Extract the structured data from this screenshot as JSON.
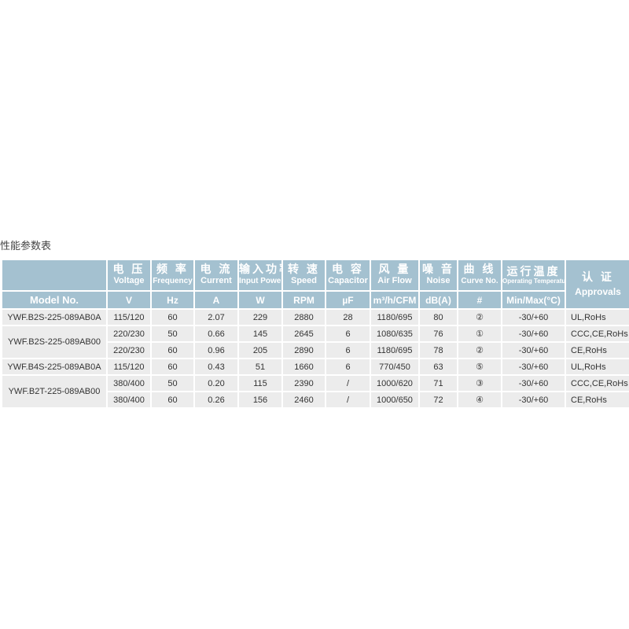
{
  "title": "性能参数表",
  "header": {
    "model": "Model No.",
    "cols": [
      {
        "zh": "电 压",
        "en": "Voltage",
        "unit": "V"
      },
      {
        "zh": "频 率",
        "en": "Frequency",
        "unit": "Hz"
      },
      {
        "zh": "电 流",
        "en": "Current",
        "unit": "A"
      },
      {
        "zh": "输入功率",
        "en": "Input Power",
        "unit": "W"
      },
      {
        "zh": "转 速",
        "en": "Speed",
        "unit": "RPM"
      },
      {
        "zh": "电 容",
        "en": "Capacitor",
        "unit": "µF"
      },
      {
        "zh": "风 量",
        "en": "Air Flow",
        "unit": "m³/h/CFM"
      },
      {
        "zh": "噪 音",
        "en": "Noise",
        "unit": "dB(A)"
      },
      {
        "zh": "曲 线",
        "en": "Curve No.",
        "unit": "#"
      },
      {
        "zh": "运行温度",
        "en": "Operating Temperature",
        "unit": "Min/Max(°C)"
      }
    ],
    "approvals": {
      "zh": "认 证",
      "en": "Approvals"
    }
  },
  "models": [
    "YWF.B2S-225-089AB0A",
    "YWF.B2S-225-089AB00",
    "YWF.B4S-225-089AB0A",
    "YWF.B2T-225-089AB00"
  ],
  "rows": [
    [
      "115/120",
      "60",
      "2.07",
      "229",
      "2880",
      "28",
      "1180/695",
      "80",
      "②",
      "-30/+60",
      "UL,RoHs"
    ],
    [
      "220/230",
      "50",
      "0.66",
      "145",
      "2645",
      "6",
      "1080/635",
      "76",
      "①",
      "-30/+60",
      "CCC,CE,RoHs"
    ],
    [
      "220/230",
      "60",
      "0.96",
      "205",
      "2890",
      "6",
      "1180/695",
      "78",
      "②",
      "-30/+60",
      "CE,RoHs"
    ],
    [
      "115/120",
      "60",
      "0.43",
      "51",
      "1660",
      "6",
      "770/450",
      "63",
      "⑤",
      "-30/+60",
      "UL,RoHs"
    ],
    [
      "380/400",
      "50",
      "0.20",
      "115",
      "2390",
      "/",
      "1000/620",
      "71",
      "③",
      "-30/+60",
      "CCC,CE,RoHs"
    ],
    [
      "380/400",
      "60",
      "0.26",
      "156",
      "2460",
      "/",
      "1000/650",
      "72",
      "④",
      "-30/+60",
      "CE,RoHs"
    ]
  ]
}
